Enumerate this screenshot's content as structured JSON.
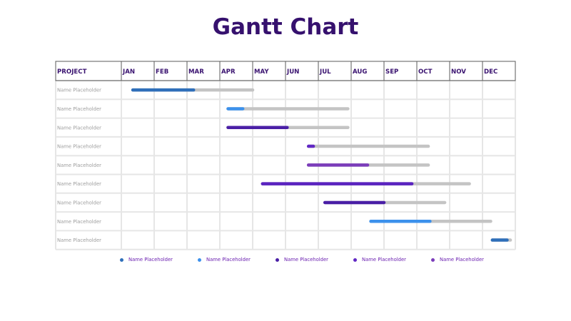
{
  "title": "Gantt Chart",
  "chart_data": {
    "type": "gantt",
    "title": "Gantt Chart",
    "column_header": "PROJECT",
    "months": [
      "JAN",
      "FEB",
      "MAR",
      "APR",
      "MAY",
      "JUN",
      "JUL",
      "AUG",
      "SEP",
      "OCT",
      "NOV",
      "DEC"
    ],
    "tasks": [
      {
        "name": "Name Placeholder",
        "start": 0.35,
        "end": 4.0,
        "progress_end": 2.2,
        "color": "#2f6fba"
      },
      {
        "name": "Name Placeholder",
        "start": 3.25,
        "end": 6.9,
        "progress_end": 3.7,
        "color": "#3c91ec"
      },
      {
        "name": "Name Placeholder",
        "start": 3.25,
        "end": 6.9,
        "progress_end": 5.05,
        "color": "#4a1fa6"
      },
      {
        "name": "Name Placeholder",
        "start": 5.7,
        "end": 9.35,
        "progress_end": 5.85,
        "color": "#6128c4"
      },
      {
        "name": "Name Placeholder",
        "start": 5.7,
        "end": 9.35,
        "progress_end": 7.5,
        "color": "#7b3cba"
      },
      {
        "name": "Name Placeholder",
        "start": 4.3,
        "end": 10.6,
        "progress_end": 8.85,
        "color": "#5a23c0"
      },
      {
        "name": "Name Placeholder",
        "start": 6.2,
        "end": 9.85,
        "progress_end": 8.0,
        "color": "#4a1fa6"
      },
      {
        "name": "Name Placeholder",
        "start": 7.6,
        "end": 11.25,
        "progress_end": 9.4,
        "color": "#3c91ec"
      },
      {
        "name": "Name Placeholder",
        "start": 11.3,
        "end": 11.85,
        "progress_end": 11.75,
        "color": "#2f6fba"
      }
    ],
    "legend": [
      {
        "label": "Name Placeholder",
        "color": "#2f6fba"
      },
      {
        "label": "Name Placeholder",
        "color": "#3c91ec"
      },
      {
        "label": "Name Placeholder",
        "color": "#4a1fa6"
      },
      {
        "label": "Name Placeholder",
        "color": "#6128c4"
      },
      {
        "label": "Name Placeholder",
        "color": "#7b3cba"
      }
    ],
    "remaining_color": "#c4c4c4"
  }
}
